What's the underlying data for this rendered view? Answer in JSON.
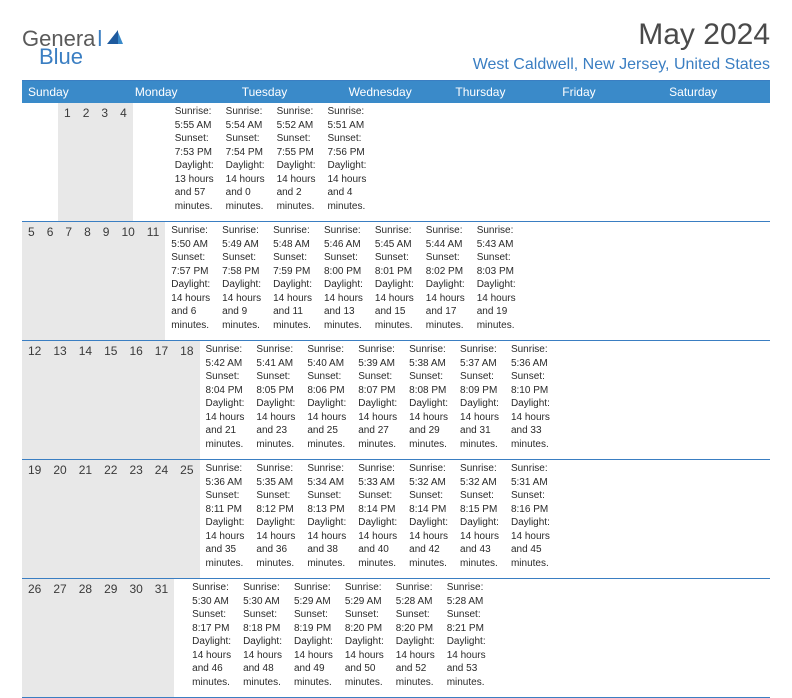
{
  "logo": {
    "part1": "Genera",
    "part2": "l",
    "part3": "Blue"
  },
  "title": "May 2024",
  "location": "West Caldwell, New Jersey, United States",
  "colors": {
    "header_bg": "#3a8ac9",
    "accent": "#3a7ec2",
    "daynum_bg": "#e8e8e8",
    "text": "#2a2a2a"
  },
  "dow": [
    "Sunday",
    "Monday",
    "Tuesday",
    "Wednesday",
    "Thursday",
    "Friday",
    "Saturday"
  ],
  "weeks": [
    [
      {
        "n": "",
        "sr": "",
        "ss": "",
        "dl": ""
      },
      {
        "n": "",
        "sr": "",
        "ss": "",
        "dl": ""
      },
      {
        "n": "",
        "sr": "",
        "ss": "",
        "dl": ""
      },
      {
        "n": "1",
        "sr": "Sunrise: 5:55 AM",
        "ss": "Sunset: 7:53 PM",
        "dl": "Daylight: 13 hours and 57 minutes."
      },
      {
        "n": "2",
        "sr": "Sunrise: 5:54 AM",
        "ss": "Sunset: 7:54 PM",
        "dl": "Daylight: 14 hours and 0 minutes."
      },
      {
        "n": "3",
        "sr": "Sunrise: 5:52 AM",
        "ss": "Sunset: 7:55 PM",
        "dl": "Daylight: 14 hours and 2 minutes."
      },
      {
        "n": "4",
        "sr": "Sunrise: 5:51 AM",
        "ss": "Sunset: 7:56 PM",
        "dl": "Daylight: 14 hours and 4 minutes."
      }
    ],
    [
      {
        "n": "5",
        "sr": "Sunrise: 5:50 AM",
        "ss": "Sunset: 7:57 PM",
        "dl": "Daylight: 14 hours and 6 minutes."
      },
      {
        "n": "6",
        "sr": "Sunrise: 5:49 AM",
        "ss": "Sunset: 7:58 PM",
        "dl": "Daylight: 14 hours and 9 minutes."
      },
      {
        "n": "7",
        "sr": "Sunrise: 5:48 AM",
        "ss": "Sunset: 7:59 PM",
        "dl": "Daylight: 14 hours and 11 minutes."
      },
      {
        "n": "8",
        "sr": "Sunrise: 5:46 AM",
        "ss": "Sunset: 8:00 PM",
        "dl": "Daylight: 14 hours and 13 minutes."
      },
      {
        "n": "9",
        "sr": "Sunrise: 5:45 AM",
        "ss": "Sunset: 8:01 PM",
        "dl": "Daylight: 14 hours and 15 minutes."
      },
      {
        "n": "10",
        "sr": "Sunrise: 5:44 AM",
        "ss": "Sunset: 8:02 PM",
        "dl": "Daylight: 14 hours and 17 minutes."
      },
      {
        "n": "11",
        "sr": "Sunrise: 5:43 AM",
        "ss": "Sunset: 8:03 PM",
        "dl": "Daylight: 14 hours and 19 minutes."
      }
    ],
    [
      {
        "n": "12",
        "sr": "Sunrise: 5:42 AM",
        "ss": "Sunset: 8:04 PM",
        "dl": "Daylight: 14 hours and 21 minutes."
      },
      {
        "n": "13",
        "sr": "Sunrise: 5:41 AM",
        "ss": "Sunset: 8:05 PM",
        "dl": "Daylight: 14 hours and 23 minutes."
      },
      {
        "n": "14",
        "sr": "Sunrise: 5:40 AM",
        "ss": "Sunset: 8:06 PM",
        "dl": "Daylight: 14 hours and 25 minutes."
      },
      {
        "n": "15",
        "sr": "Sunrise: 5:39 AM",
        "ss": "Sunset: 8:07 PM",
        "dl": "Daylight: 14 hours and 27 minutes."
      },
      {
        "n": "16",
        "sr": "Sunrise: 5:38 AM",
        "ss": "Sunset: 8:08 PM",
        "dl": "Daylight: 14 hours and 29 minutes."
      },
      {
        "n": "17",
        "sr": "Sunrise: 5:37 AM",
        "ss": "Sunset: 8:09 PM",
        "dl": "Daylight: 14 hours and 31 minutes."
      },
      {
        "n": "18",
        "sr": "Sunrise: 5:36 AM",
        "ss": "Sunset: 8:10 PM",
        "dl": "Daylight: 14 hours and 33 minutes."
      }
    ],
    [
      {
        "n": "19",
        "sr": "Sunrise: 5:36 AM",
        "ss": "Sunset: 8:11 PM",
        "dl": "Daylight: 14 hours and 35 minutes."
      },
      {
        "n": "20",
        "sr": "Sunrise: 5:35 AM",
        "ss": "Sunset: 8:12 PM",
        "dl": "Daylight: 14 hours and 36 minutes."
      },
      {
        "n": "21",
        "sr": "Sunrise: 5:34 AM",
        "ss": "Sunset: 8:13 PM",
        "dl": "Daylight: 14 hours and 38 minutes."
      },
      {
        "n": "22",
        "sr": "Sunrise: 5:33 AM",
        "ss": "Sunset: 8:14 PM",
        "dl": "Daylight: 14 hours and 40 minutes."
      },
      {
        "n": "23",
        "sr": "Sunrise: 5:32 AM",
        "ss": "Sunset: 8:14 PM",
        "dl": "Daylight: 14 hours and 42 minutes."
      },
      {
        "n": "24",
        "sr": "Sunrise: 5:32 AM",
        "ss": "Sunset: 8:15 PM",
        "dl": "Daylight: 14 hours and 43 minutes."
      },
      {
        "n": "25",
        "sr": "Sunrise: 5:31 AM",
        "ss": "Sunset: 8:16 PM",
        "dl": "Daylight: 14 hours and 45 minutes."
      }
    ],
    [
      {
        "n": "26",
        "sr": "Sunrise: 5:30 AM",
        "ss": "Sunset: 8:17 PM",
        "dl": "Daylight: 14 hours and 46 minutes."
      },
      {
        "n": "27",
        "sr": "Sunrise: 5:30 AM",
        "ss": "Sunset: 8:18 PM",
        "dl": "Daylight: 14 hours and 48 minutes."
      },
      {
        "n": "28",
        "sr": "Sunrise: 5:29 AM",
        "ss": "Sunset: 8:19 PM",
        "dl": "Daylight: 14 hours and 49 minutes."
      },
      {
        "n": "29",
        "sr": "Sunrise: 5:29 AM",
        "ss": "Sunset: 8:20 PM",
        "dl": "Daylight: 14 hours and 50 minutes."
      },
      {
        "n": "30",
        "sr": "Sunrise: 5:28 AM",
        "ss": "Sunset: 8:20 PM",
        "dl": "Daylight: 14 hours and 52 minutes."
      },
      {
        "n": "31",
        "sr": "Sunrise: 5:28 AM",
        "ss": "Sunset: 8:21 PM",
        "dl": "Daylight: 14 hours and 53 minutes."
      },
      {
        "n": "",
        "sr": "",
        "ss": "",
        "dl": ""
      }
    ]
  ]
}
